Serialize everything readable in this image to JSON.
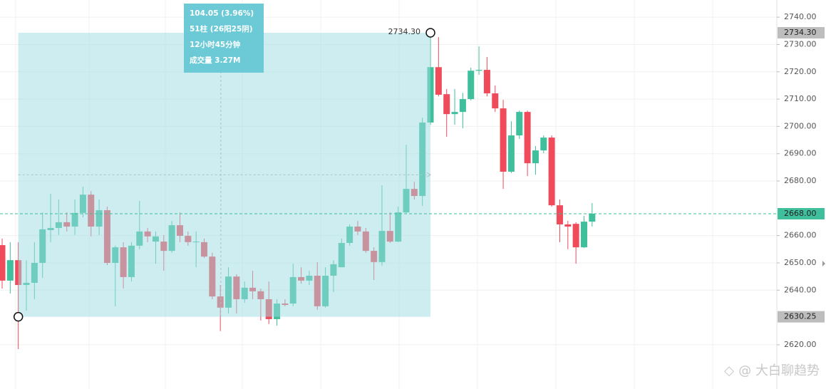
{
  "chart_data": {
    "type": "candlestick",
    "up_color": "#3fbf9c",
    "down_color": "#ef4b5a",
    "open": [
      2656.5,
      2643.5,
      2651.0,
      2641.9,
      2642.7,
      2650.0,
      2662.0,
      2662.8,
      2664.9,
      2663.3,
      2668.3,
      2675.0,
      2663.3,
      2669.3,
      2650.0,
      2655.7,
      2644.8,
      2656.3,
      2661.5,
      2657.8,
      2657.8,
      2654.4,
      2663.8,
      2659.9,
      2657.6,
      2657.6,
      2652.3,
      2637.7,
      2633.6,
      2645.0,
      2636.7,
      2640.9,
      2639.6,
      2636.7,
      2629.4,
      2635.1,
      2635.1,
      2644.8,
      2643.5,
      2645.3,
      2634.1,
      2645.3,
      2648.4,
      2657.3,
      2663.3,
      2661.5,
      2654.4,
      2650.3,
      2661.7,
      2657.8,
      2668.5,
      2677.1,
      2674.5,
      2701.4,
      2721.7,
      2711.8,
      2704.5,
      2705.3,
      2710.0,
      2720.4,
      2720.7,
      2712.1,
      2706.6,
      2683.4,
      2696.7,
      2705.3,
      2686.5,
      2691.2,
      2695.9,
      2671.1,
      2664.1,
      2664.3,
      2655.7,
      2665.1
    ],
    "high": [
      2658.9,
      2657.6,
      2657.6,
      2651.0,
      2657.6,
      2668.5,
      2675.3,
      2673.2,
      2668.5,
      2673.2,
      2677.9,
      2676.3,
      2673.2,
      2670.6,
      2656.3,
      2657.6,
      2657.6,
      2672.7,
      2662.8,
      2661.5,
      2660.2,
      2665.4,
      2668.5,
      2661.5,
      2661.5,
      2658.9,
      2653.7,
      2641.9,
      2648.4,
      2645.8,
      2643.2,
      2647.1,
      2640.6,
      2643.2,
      2636.7,
      2636.7,
      2649.7,
      2648.4,
      2647.1,
      2650.3,
      2648.4,
      2651.0,
      2658.9,
      2664.1,
      2665.4,
      2662.8,
      2655.7,
      2678.4,
      2668.5,
      2670.6,
      2693.3,
      2679.7,
      2703.2,
      2734.3,
      2732.7,
      2713.7,
      2713.7,
      2712.3,
      2721.5,
      2729.3,
      2725.4,
      2715.0,
      2709.7,
      2701.9,
      2705.8,
      2705.8,
      2692.8,
      2696.7,
      2696.7,
      2673.2,
      2665.4,
      2664.9,
      2667.2,
      2671.9
    ],
    "low": [
      2640.6,
      2638.8,
      2618.4,
      2632.5,
      2636.7,
      2644.5,
      2657.6,
      2660.2,
      2661.5,
      2660.2,
      2666.7,
      2659.7,
      2660.2,
      2649.2,
      2634.1,
      2640.6,
      2643.2,
      2655.0,
      2657.6,
      2649.7,
      2647.1,
      2653.7,
      2657.6,
      2656.3,
      2648.4,
      2651.8,
      2636.7,
      2625.0,
      2631.5,
      2631.5,
      2635.4,
      2636.7,
      2628.9,
      2627.6,
      2627.0,
      2634.1,
      2634.1,
      2642.4,
      2641.9,
      2632.8,
      2633.6,
      2639.3,
      2648.4,
      2656.3,
      2660.2,
      2653.7,
      2643.7,
      2649.0,
      2657.3,
      2657.6,
      2668.0,
      2673.2,
      2670.9,
      2700.6,
      2711.0,
      2696.2,
      2700.6,
      2699.3,
      2709.5,
      2718.9,
      2711.0,
      2705.3,
      2677.1,
      2682.9,
      2695.4,
      2681.8,
      2682.3,
      2690.2,
      2670.6,
      2657.6,
      2655.0,
      2649.7,
      2655.5,
      2663.3
    ],
    "close": [
      2643.5,
      2651.0,
      2641.9,
      2642.7,
      2650.0,
      2662.3,
      2662.8,
      2664.9,
      2663.3,
      2668.3,
      2675.0,
      2663.3,
      2669.3,
      2650.0,
      2655.7,
      2644.8,
      2656.3,
      2661.5,
      2659.7,
      2659.7,
      2654.4,
      2663.8,
      2659.9,
      2657.6,
      2657.8,
      2652.3,
      2637.7,
      2633.6,
      2645.0,
      2636.7,
      2640.9,
      2639.6,
      2636.7,
      2629.4,
      2635.1,
      2634.6,
      2644.8,
      2643.5,
      2645.3,
      2634.1,
      2645.3,
      2649.5,
      2657.3,
      2663.3,
      2661.5,
      2654.4,
      2650.3,
      2661.7,
      2657.8,
      2668.5,
      2677.1,
      2674.5,
      2701.4,
      2721.7,
      2711.6,
      2704.5,
      2705.3,
      2710.0,
      2720.4,
      2720.7,
      2712.1,
      2706.6,
      2683.4,
      2696.7,
      2705.3,
      2686.5,
      2691.2,
      2695.9,
      2671.1,
      2664.1,
      2663.3,
      2655.7,
      2665.1,
      2668.0
    ],
    "ylim": [
      2603.8,
      2746.3
    ],
    "yticks": [
      {
        "value": 2740,
        "label": "2740.00"
      },
      {
        "value": 2730,
        "label": "2730.00"
      },
      {
        "value": 2720,
        "label": "2720.00"
      },
      {
        "value": 2710,
        "label": "2710.00"
      },
      {
        "value": 2700,
        "label": "2700.00"
      },
      {
        "value": 2690,
        "label": "2690.00"
      },
      {
        "value": 2680,
        "label": "2680.00"
      },
      {
        "value": 2660,
        "label": "2660.00"
      },
      {
        "value": 2650,
        "label": "2650.00"
      },
      {
        "value": 2640,
        "label": "2640.00"
      },
      {
        "value": 2620,
        "label": "2620.00"
      }
    ],
    "grid": true,
    "current_price": {
      "value": 2668.0,
      "label": "2668.00"
    },
    "measure": {
      "from": {
        "value": 2630.25,
        "label": "2630.25"
      },
      "to": {
        "value": 2734.3,
        "label": "2734.30"
      },
      "lines": [
        "104.05 (3.96%)",
        "51柱 (26阳25阴)",
        "12小时45分钟",
        "成交量 3.27M"
      ]
    },
    "watermark": "@ 大白聊趋势"
  }
}
